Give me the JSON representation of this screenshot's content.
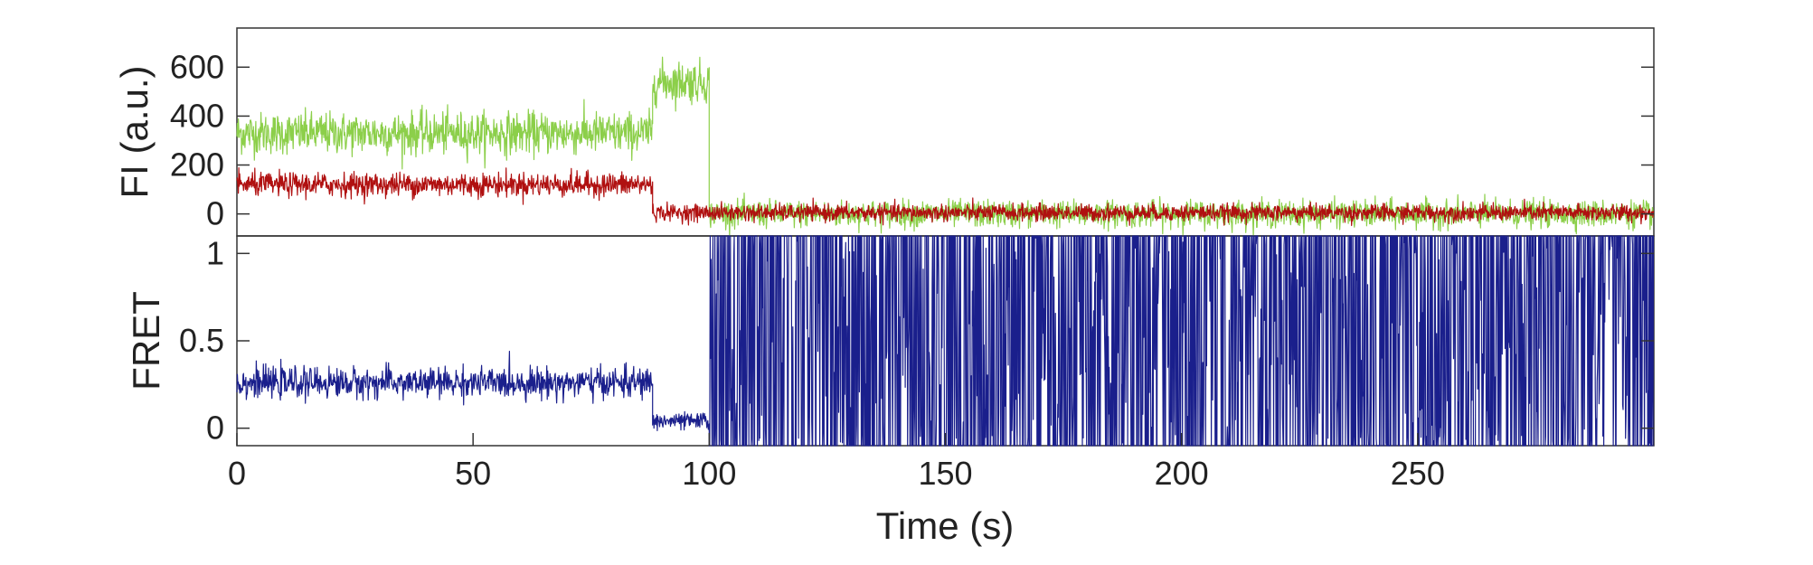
{
  "chart_data": [
    {
      "type": "line",
      "panel": "top",
      "xlabel": "",
      "ylabel": "FI (a.u.)",
      "xlim": [
        0,
        300
      ],
      "ylim": [
        -90,
        760
      ],
      "yticks": [
        0,
        200,
        400,
        600
      ],
      "ytick_labels": [
        "0",
        "200",
        "400",
        "600"
      ],
      "grid": false,
      "series": [
        {
          "color": "#8ccf4a",
          "segments": [
            {
              "x_start": 0,
              "x_end": 88,
              "mean": 330,
              "noise": 70
            },
            {
              "x_start": 88,
              "x_end": 100,
              "mean": 540,
              "noise": 70
            },
            {
              "x_start": 100,
              "x_end": 300,
              "mean": 0,
              "noise": 45
            }
          ]
        },
        {
          "color": "#b01010",
          "segments": [
            {
              "x_start": 0,
              "x_end": 88,
              "mean": 120,
              "noise": 40
            },
            {
              "x_start": 88,
              "x_end": 300,
              "mean": 5,
              "noise": 28
            }
          ]
        }
      ]
    },
    {
      "type": "line",
      "panel": "bottom",
      "xlabel": "Time (s)",
      "ylabel": "FRET",
      "xlim": [
        0,
        300
      ],
      "ylim": [
        -0.1,
        1.1
      ],
      "xticks": [
        0,
        50,
        100,
        150,
        200,
        250
      ],
      "xtick_labels": [
        "0",
        "50",
        "100",
        "150",
        "200",
        "250"
      ],
      "yticks": [
        0,
        0.5,
        1
      ],
      "ytick_labels": [
        "0",
        "0.5",
        "1"
      ],
      "grid": false,
      "series": [
        {
          "color": "#1a1f8c",
          "segments": [
            {
              "x_start": 0,
              "x_end": 88,
              "mean": 0.26,
              "noise": 0.07
            },
            {
              "x_start": 88,
              "x_end": 100,
              "mean": 0.04,
              "noise": 0.04
            },
            {
              "x_start": 100,
              "x_end": 300,
              "mean": 0.5,
              "noise": 1.0,
              "random_switching": true
            }
          ]
        }
      ]
    }
  ]
}
